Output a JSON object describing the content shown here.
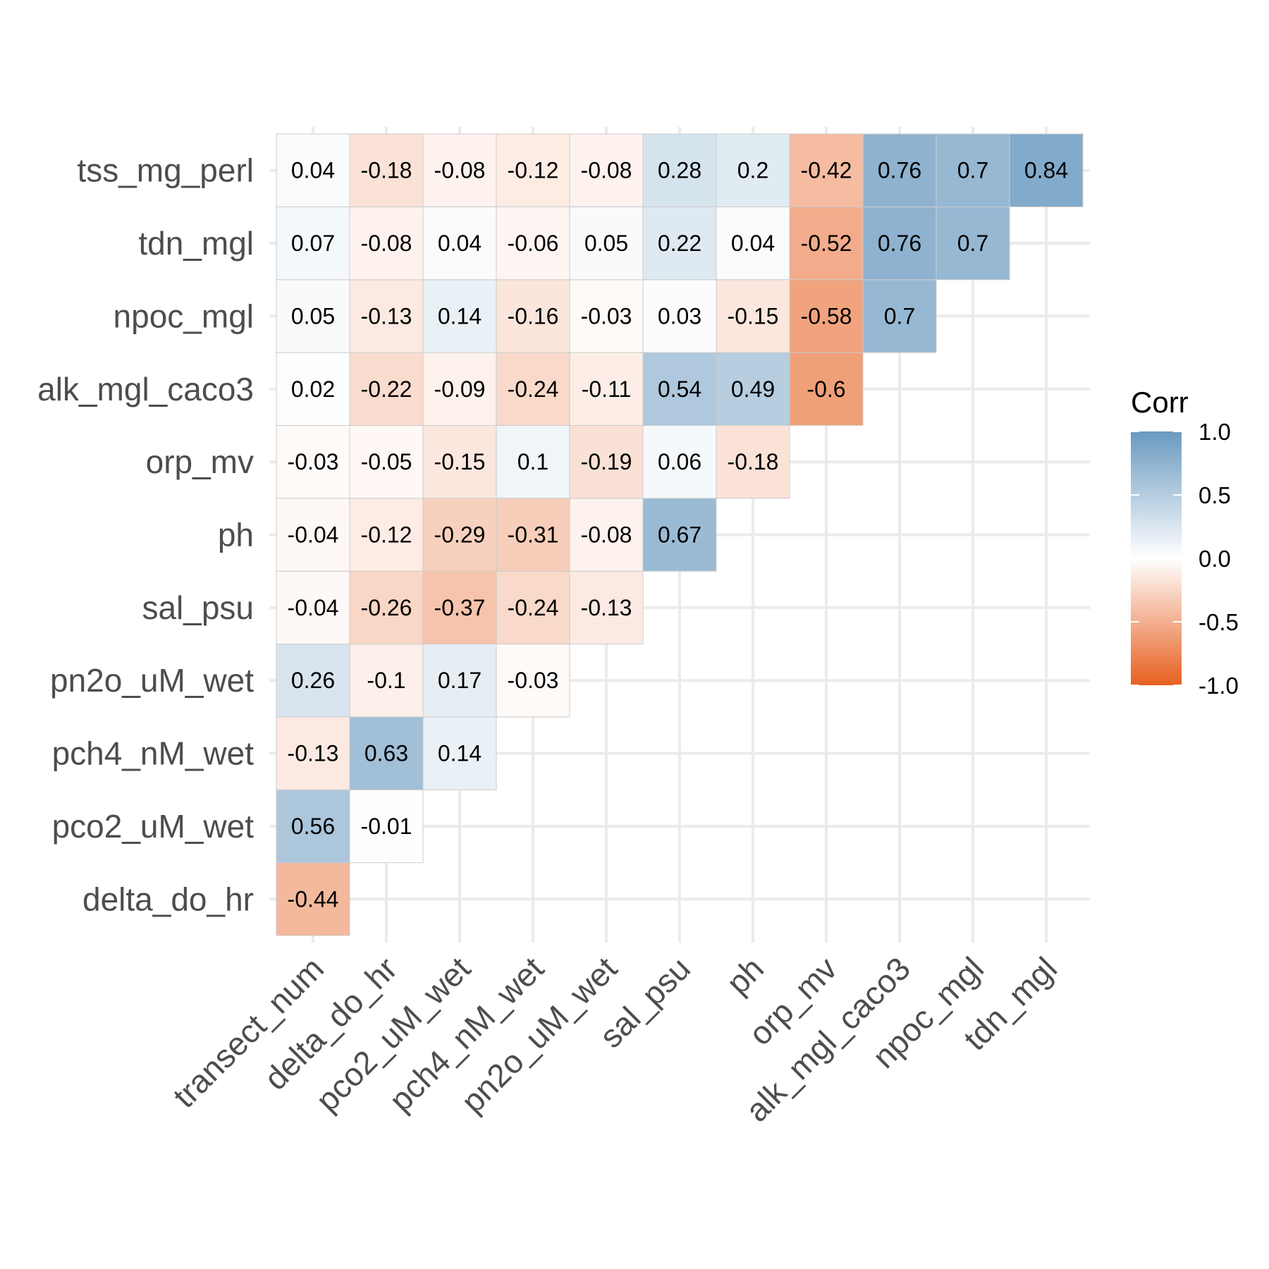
{
  "chart_data": {
    "type": "heatmap",
    "title": "",
    "xlabel": "",
    "ylabel": "",
    "x_categories": [
      "transect_num",
      "delta_do_hr",
      "pco2_uM_wet",
      "pch4_nM_wet",
      "pn2o_uM_wet",
      "sal_psu",
      "ph",
      "orp_mv",
      "alk_mgl_caco3",
      "npoc_mgl",
      "tdn_mgl"
    ],
    "y_categories": [
      "delta_do_hr",
      "pco2_uM_wet",
      "pch4_nM_wet",
      "pn2o_uM_wet",
      "sal_psu",
      "ph",
      "orp_mv",
      "alk_mgl_caco3",
      "npoc_mgl",
      "tdn_mgl",
      "tss_mg_perl"
    ],
    "values": [
      [
        -0.44,
        null,
        null,
        null,
        null,
        null,
        null,
        null,
        null,
        null,
        null
      ],
      [
        0.56,
        -0.01,
        null,
        null,
        null,
        null,
        null,
        null,
        null,
        null,
        null
      ],
      [
        -0.13,
        0.63,
        0.14,
        null,
        null,
        null,
        null,
        null,
        null,
        null,
        null
      ],
      [
        0.26,
        -0.1,
        0.17,
        -0.03,
        null,
        null,
        null,
        null,
        null,
        null,
        null
      ],
      [
        -0.04,
        -0.26,
        -0.37,
        -0.24,
        -0.13,
        null,
        null,
        null,
        null,
        null,
        null
      ],
      [
        -0.04,
        -0.12,
        -0.29,
        -0.31,
        -0.08,
        0.67,
        null,
        null,
        null,
        null,
        null
      ],
      [
        -0.03,
        -0.05,
        -0.15,
        0.1,
        -0.19,
        0.06,
        -0.18,
        null,
        null,
        null,
        null
      ],
      [
        0.02,
        -0.22,
        -0.09,
        -0.24,
        -0.11,
        0.54,
        0.49,
        -0.6,
        null,
        null,
        null
      ],
      [
        0.05,
        -0.13,
        0.14,
        -0.16,
        -0.03,
        0.03,
        -0.15,
        -0.58,
        0.7,
        null,
        null
      ],
      [
        0.07,
        -0.08,
        0.04,
        -0.06,
        0.05,
        0.22,
        0.04,
        -0.52,
        0.76,
        0.7,
        null
      ],
      [
        0.04,
        -0.18,
        -0.08,
        -0.12,
        -0.08,
        0.28,
        0.2,
        -0.42,
        0.76,
        0.7,
        0.84
      ]
    ],
    "labels": [
      [
        "-0.44",
        "",
        "",
        "",
        "",
        "",
        "",
        "",
        "",
        "",
        ""
      ],
      [
        "0.56",
        "-0.01",
        "",
        "",
        "",
        "",
        "",
        "",
        "",
        "",
        ""
      ],
      [
        "-0.13",
        "0.63",
        "0.14",
        "",
        "",
        "",
        "",
        "",
        "",
        "",
        ""
      ],
      [
        "0.26",
        "-0.1",
        "0.17",
        "-0.03",
        "",
        "",
        "",
        "",
        "",
        "",
        ""
      ],
      [
        "-0.04",
        "-0.26",
        "-0.37",
        "-0.24",
        "-0.13",
        "",
        "",
        "",
        "",
        "",
        ""
      ],
      [
        "-0.04",
        "-0.12",
        "-0.29",
        "-0.31",
        "-0.08",
        "0.67",
        "",
        "",
        "",
        "",
        ""
      ],
      [
        "-0.03",
        "-0.05",
        "-0.15",
        "0.1",
        "-0.19",
        "0.06",
        "-0.18",
        "",
        "",
        "",
        ""
      ],
      [
        "0.02",
        "-0.22",
        "-0.09",
        "-0.24",
        "-0.11",
        "0.54",
        "0.49",
        "-0.6",
        "",
        "",
        ""
      ],
      [
        "0.05",
        "-0.13",
        "0.14",
        "-0.16",
        "-0.03",
        "0.03",
        "-0.15",
        "-0.58",
        "0.7",
        "",
        ""
      ],
      [
        "0.07",
        "-0.08",
        "0.04",
        "-0.06",
        "0.05",
        "0.22",
        "0.04",
        "-0.52",
        "0.76",
        "0.7",
        ""
      ],
      [
        "0.04",
        "-0.18",
        "-0.08",
        "-0.12",
        "-0.08",
        "0.28",
        "0.2",
        "-0.42",
        "0.76",
        "0.7",
        "0.84"
      ]
    ],
    "color_scale": {
      "low": "#E66020",
      "mid": "#FFFFFF",
      "high": "#6A9AC0",
      "range": [
        -1,
        1
      ]
    },
    "legend": {
      "title": "Corr",
      "ticks": [
        "1.0",
        "0.5",
        "0.0",
        "-0.5",
        "-1.0"
      ],
      "tick_values": [
        1,
        0.5,
        0,
        -0.5,
        -1
      ],
      "placement": "right"
    },
    "grid": true,
    "grid_color": "#ebebeb",
    "cell_border_color": "#cccccc"
  }
}
